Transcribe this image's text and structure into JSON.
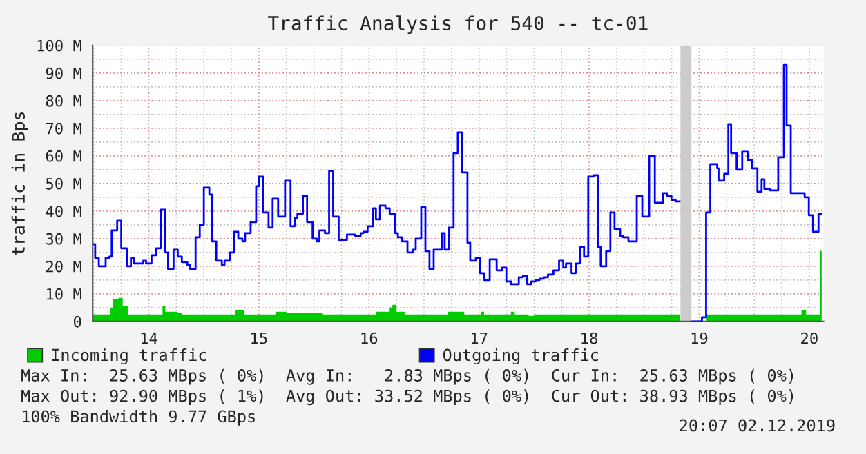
{
  "chart_data": {
    "type": "step",
    "title": "Traffic Analysis for 540 -- tc-01",
    "ylabel": "traffic in Bps",
    "xlim": [
      13.49,
      20.13
    ],
    "xticks": [
      14,
      15,
      16,
      17,
      18,
      19,
      20
    ],
    "ylim": [
      0,
      100
    ],
    "yticks": [
      0,
      {
        "value": 10,
        "label": "10 M"
      },
      {
        "value": 20,
        "label": "20 M"
      },
      {
        "value": 30,
        "label": "30 M"
      },
      {
        "value": 40,
        "label": "40 M"
      },
      {
        "value": 50,
        "label": "50 M"
      },
      {
        "value": 60,
        "label": "60 M"
      },
      {
        "value": 70,
        "label": "70 M"
      },
      {
        "value": 80,
        "label": "80 M"
      },
      {
        "value": 90,
        "label": "90 M"
      },
      {
        "value": 100,
        "label": "100 M"
      }
    ],
    "grid": true,
    "legend": "bottom",
    "bands": [
      {
        "axis": "x",
        "from": 18.83,
        "to": 18.93,
        "color": "#cccccc"
      }
    ],
    "series": [
      {
        "name": "Incoming traffic",
        "type": "area",
        "color": "#00cc00",
        "x": [
          13.492,
          13.65,
          13.675,
          13.725,
          13.763,
          13.813,
          14.125,
          14.15,
          14.263,
          14.3,
          14.788,
          14.863,
          15.15,
          15.25,
          15.575,
          16.063,
          16.188,
          16.213,
          16.25,
          16.325,
          16.714,
          16.866,
          17.021,
          17.046,
          17.29,
          17.324,
          17.45,
          17.5,
          18.824,
          18.933,
          19.067,
          19.929,
          19.971,
          20.097,
          20.113
        ],
        "values": [
          2.5,
          5,
          8,
          8.5,
          5.5,
          2.5,
          5.5,
          3.5,
          3,
          2.5,
          4,
          2.5,
          3.5,
          3,
          2.5,
          3.5,
          5,
          6,
          3.5,
          2.5,
          3.5,
          2.5,
          3.5,
          2.5,
          3.5,
          2.5,
          2,
          2.5,
          null,
          0,
          2.5,
          4,
          2.5,
          25.6,
          25.6
        ]
      },
      {
        "name": "Outgoing traffic",
        "color": "#0000ff",
        "x": [
          13.492,
          13.513,
          13.546,
          13.608,
          13.642,
          13.663,
          13.713,
          13.75,
          13.8,
          13.838,
          13.867,
          13.95,
          13.975,
          14.025,
          14.067,
          14.108,
          14.15,
          14.175,
          14.225,
          14.263,
          14.3,
          14.35,
          14.375,
          14.425,
          14.463,
          14.5,
          14.55,
          14.575,
          14.613,
          14.663,
          14.688,
          14.738,
          14.775,
          14.813,
          14.85,
          14.875,
          14.925,
          14.975,
          15.0,
          15.038,
          15.088,
          15.125,
          15.175,
          15.238,
          15.288,
          15.325,
          15.35,
          15.4,
          15.438,
          15.488,
          15.525,
          15.55,
          15.6,
          15.638,
          15.675,
          15.725,
          15.8,
          15.875,
          15.925,
          15.95,
          15.988,
          16.038,
          16.063,
          16.1,
          16.15,
          16.188,
          16.238,
          16.263,
          16.3,
          16.35,
          16.4,
          16.425,
          16.475,
          16.513,
          16.55,
          16.588,
          16.663,
          16.688,
          16.725,
          16.769,
          16.807,
          16.845,
          16.895,
          16.92,
          16.971,
          17.008,
          17.046,
          17.097,
          17.16,
          17.21,
          17.248,
          17.29,
          17.361,
          17.399,
          17.437,
          17.475,
          17.513,
          17.55,
          17.588,
          17.626,
          17.676,
          17.727,
          17.765,
          17.79,
          17.84,
          17.878,
          17.916,
          17.954,
          17.992,
          18.042,
          18.08,
          18.105,
          18.155,
          18.193,
          18.231,
          18.282,
          18.307,
          18.357,
          18.433,
          18.483,
          18.546,
          18.597,
          18.672,
          18.71,
          18.748,
          18.786,
          18.824,
          18.933,
          19.025,
          19.063,
          19.101,
          19.164,
          19.176,
          19.227,
          19.265,
          19.29,
          19.34,
          19.391,
          19.441,
          19.479,
          19.529,
          19.567,
          19.592,
          19.643,
          19.718,
          19.769,
          19.794,
          19.832,
          19.958,
          19.996,
          20.034,
          20.084,
          20.113
        ],
        "values": [
          28,
          23,
          20,
          23,
          23.5,
          33,
          36.5,
          26.5,
          20,
          23,
          21,
          22,
          21,
          24,
          26.5,
          40.5,
          25,
          19,
          26,
          23.5,
          21.5,
          20.5,
          19,
          30.5,
          35,
          48.5,
          46,
          29,
          22,
          20.5,
          22,
          25,
          32.5,
          30,
          29,
          32,
          36,
          49,
          52.5,
          39.5,
          34,
          44.5,
          38,
          51,
          34.5,
          37.5,
          39,
          45.5,
          36,
          30,
          29,
          33,
          32,
          54.5,
          38,
          29.5,
          31.5,
          31,
          32,
          32.5,
          34.5,
          41,
          37,
          42,
          41,
          39,
          32,
          30.5,
          29,
          25,
          26,
          30,
          41.5,
          25.5,
          19,
          26,
          32,
          26,
          34,
          61,
          68.5,
          54,
          28.5,
          22,
          23,
          17.5,
          15,
          22.5,
          18.5,
          19.5,
          14.5,
          13.5,
          16,
          16.5,
          13.5,
          14.5,
          15,
          15.5,
          16,
          17,
          18.5,
          22,
          19.5,
          21,
          17.5,
          21,
          27,
          23.5,
          52.5,
          53,
          27,
          20,
          25.5,
          39.5,
          33.5,
          31,
          30.5,
          29,
          45.5,
          38,
          60,
          43,
          46.5,
          45.5,
          44,
          43.5,
          null,
          0,
          1.5,
          39.5,
          57,
          55.5,
          51,
          53.5,
          71.5,
          61,
          55,
          61.5,
          58.5,
          55.5,
          47,
          51.5,
          48,
          47.5,
          59.5,
          92.9,
          71,
          46.5,
          45,
          38.5,
          32.5,
          39,
          39
        ]
      }
    ],
    "annotations": [
      "Max In:  25.63 MBps ( 0%)  Avg In:   2.83 MBps ( 0%)  Cur In:  25.63 MBps ( 0%)",
      "Max Out: 92.90 MBps ( 1%)  Avg Out: 33.52 MBps ( 0%)  Cur Out: 38.93 MBps ( 0%)",
      "100% Bandwidth 9.77 GBps",
      "20:07 02.12.2019"
    ]
  }
}
